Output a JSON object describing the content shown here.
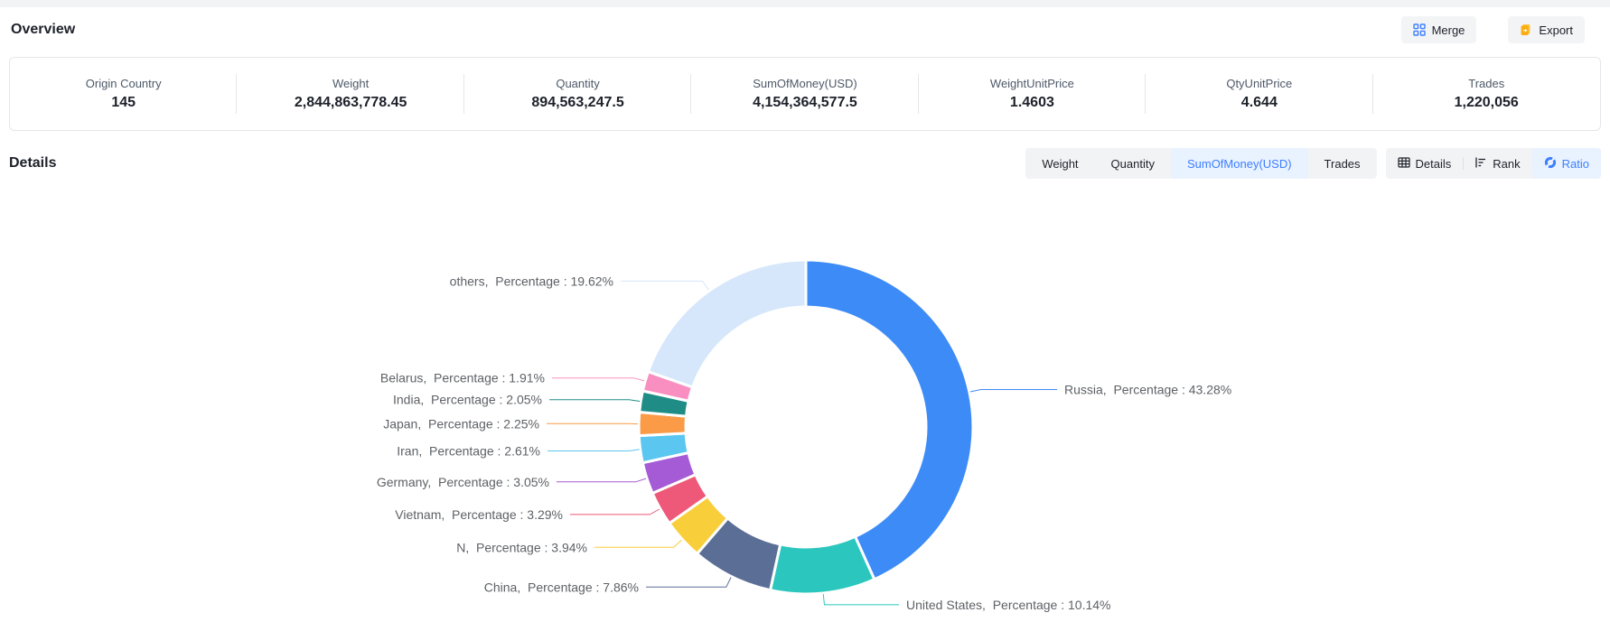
{
  "page": {
    "title": "Overview",
    "details_title": "Details"
  },
  "toolbar": {
    "merge_label": "Merge",
    "export_label": "Export"
  },
  "stats": [
    {
      "label": "Origin Country",
      "value": "145"
    },
    {
      "label": "Weight",
      "value": "2,844,863,778.45"
    },
    {
      "label": "Quantity",
      "value": "894,563,247.5"
    },
    {
      "label": "SumOfMoney(USD)",
      "value": "4,154,364,577.5"
    },
    {
      "label": "WeightUnitPrice",
      "value": "1.4603"
    },
    {
      "label": "QtyUnitPrice",
      "value": "4.644"
    },
    {
      "label": "Trades",
      "value": "1,220,056"
    }
  ],
  "metric_tabs": [
    {
      "label": "Weight",
      "active": false
    },
    {
      "label": "Quantity",
      "active": false
    },
    {
      "label": "SumOfMoney(USD)",
      "active": true
    },
    {
      "label": "Trades",
      "active": false
    }
  ],
  "view_tabs": [
    {
      "label": "Details",
      "icon": "table-icon",
      "active": false
    },
    {
      "label": "Rank",
      "icon": "rank-icon",
      "active": false
    },
    {
      "label": "Ratio",
      "icon": "ratio-icon",
      "active": true
    }
  ],
  "colors": {
    "accent": "#3d7fff",
    "active_tab_bg": "#e9f2ff",
    "tab_group_bg": "#f2f3f5",
    "export_icon": "#faad14",
    "divider": "#e5e6eb",
    "label_text": "#5e6166"
  },
  "chart_data": {
    "type": "pie",
    "donut": true,
    "title": "",
    "unit": "%",
    "direction": "clockwise",
    "start_angle_deg": 0,
    "label_format": "{name},  Percentage : {value}%",
    "slices": [
      {
        "name": "Russia",
        "value": 43.28,
        "color": "#3d8bf7"
      },
      {
        "name": "United States",
        "value": 10.14,
        "color": "#2bc7be"
      },
      {
        "name": "China",
        "value": 7.86,
        "color": "#5b6e96"
      },
      {
        "name": "N",
        "value": 3.94,
        "color": "#f9ce3b"
      },
      {
        "name": "Vietnam",
        "value": 3.29,
        "color": "#ee5879"
      },
      {
        "name": "Germany",
        "value": 3.05,
        "color": "#a55ad6"
      },
      {
        "name": "Iran",
        "value": 2.61,
        "color": "#5bc6ef"
      },
      {
        "name": "Japan",
        "value": 2.25,
        "color": "#fb9b47"
      },
      {
        "name": "India",
        "value": 2.05,
        "color": "#1f8d85"
      },
      {
        "name": "Belarus",
        "value": 1.91,
        "color": "#f98fc0"
      },
      {
        "name": "others",
        "value": 19.62,
        "color": "#d6e7fb"
      }
    ]
  }
}
